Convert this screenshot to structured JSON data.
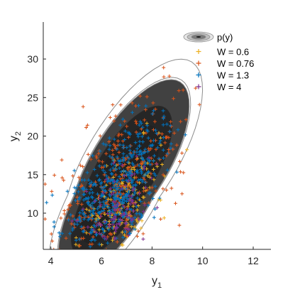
{
  "chart_data": {
    "type": "scatter",
    "title": "",
    "xlabel": {
      "base": "y",
      "sub": "1"
    },
    "ylabel": {
      "base": "y",
      "sub": "2"
    },
    "xlim": [
      3.7,
      12.7
    ],
    "ylim": [
      5.3,
      34.8
    ],
    "xticks": [
      4,
      6,
      8,
      10,
      12
    ],
    "yticks": [
      10,
      15,
      20,
      25,
      30
    ],
    "grid": false,
    "legend_placement": "top-right",
    "density": {
      "label": "p(y)",
      "center": [
        6.5,
        12.3
      ],
      "contour_levels": [
        0.9,
        0.75,
        0.5,
        0.25,
        0.1,
        0.02
      ],
      "fill_colors": [
        "#e6e6e6",
        "#d2d2d2",
        "#b4b4b4",
        "#8c8c8c",
        "#555555",
        "#111111"
      ],
      "line_color": "#8c8c8c"
    },
    "series": [
      {
        "name": "W =  0.6",
        "color": "#EDB120",
        "spread": 1.0,
        "shift": [
          0.35,
          -1.3
        ],
        "seed": 11,
        "count": 180
      },
      {
        "name": "W = 0.76",
        "color": "#D95319",
        "spread": 1.55,
        "shift": [
          0.0,
          0.6
        ],
        "seed": 23,
        "count": 330
      },
      {
        "name": "W =  1.3",
        "color": "#0072BD",
        "spread": 1.15,
        "shift": [
          0.2,
          0.3
        ],
        "seed": 37,
        "count": 460
      },
      {
        "name": "W =    4",
        "color": "#7E2F8E",
        "spread": 0.9,
        "shift": [
          0.25,
          -2.2
        ],
        "seed": 53,
        "count": 110
      }
    ]
  }
}
